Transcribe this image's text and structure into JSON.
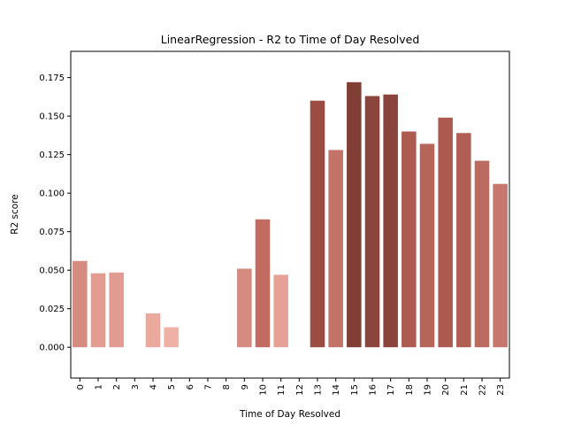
{
  "chart_data": {
    "type": "bar",
    "title": "LinearRegression - R2 to Time of Day Resolved",
    "xlabel": "Time of Day Resolved",
    "ylabel": "R2 score",
    "categories": [
      "0",
      "1",
      "2",
      "3",
      "4",
      "5",
      "6",
      "7",
      "8",
      "9",
      "10",
      "11",
      "12",
      "13",
      "14",
      "15",
      "16",
      "17",
      "18",
      "19",
      "20",
      "21",
      "22",
      "23"
    ],
    "values": [
      0.056,
      0.048,
      0.0485,
      0,
      0.022,
      0.013,
      0,
      0,
      0,
      0.051,
      0.083,
      0.047,
      0,
      0.16,
      0.128,
      0.172,
      0.163,
      0.164,
      0.14,
      0.132,
      0.149,
      0.139,
      0.121,
      0.106
    ],
    "colors": [
      "#d58b80",
      "#e39c91",
      "#e29b90",
      "#ffffff",
      "#eba89d",
      "#efb0a5",
      "#ffffff",
      "#ffffff",
      "#ffffff",
      "#d58b80",
      "#c16b61",
      "#e5a196",
      "#ffffff",
      "#9c4d43",
      "#c27267",
      "#813e35",
      "#8c453b",
      "#8b443b",
      "#ad5b51",
      "#b66559",
      "#ac5a50",
      "#b05e54",
      "#bc6b61",
      "#c6786e"
    ],
    "yticks": [
      "0.000",
      "0.025",
      "0.050",
      "0.075",
      "0.100",
      "0.125",
      "0.150",
      "0.175"
    ],
    "ylim": [
      -0.02,
      0.192
    ],
    "grid": false,
    "legend": "none"
  }
}
